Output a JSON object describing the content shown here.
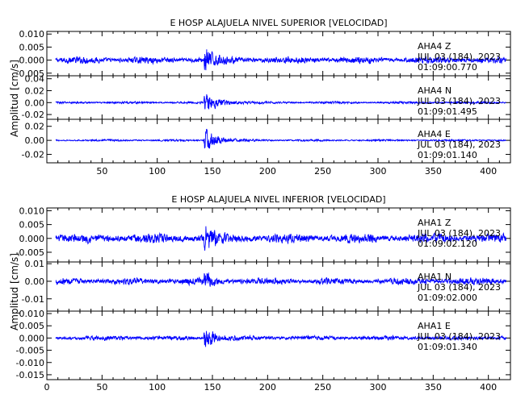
{
  "chart_data": [
    {
      "type": "line",
      "title": "E HOSP ALAJUELA NIVEL SUPERIOR [VELOCIDAD]",
      "ylabel": "Amplitud [cm/s]",
      "xlim": [
        0,
        420
      ],
      "xticks": [
        50,
        100,
        150,
        200,
        250,
        300,
        350,
        400
      ],
      "show_x_tick_labels": true,
      "channels": [
        {
          "station": "AHA4",
          "component": "Z",
          "date": "JUL 03 (184), 2023",
          "time": "01:09:00.770",
          "ylim": [
            -0.006,
            0.011
          ],
          "yticks": [
            0.01,
            0.005,
            0.0,
            -0.005
          ],
          "ytick_labels": [
            "0.010",
            "0.005",
            "0.000",
            "-0.005"
          ],
          "event_onset_x": 142,
          "noise_amplitude": 0.0017,
          "peak_amplitude": 0.008,
          "decay_seconds": 6
        },
        {
          "station": "AHA4",
          "component": "N",
          "date": "JUL 03 (184), 2023",
          "time": "01:09:01.495",
          "ylim": [
            -0.028,
            0.045
          ],
          "yticks": [
            0.04,
            0.02,
            0.0,
            -0.02
          ],
          "ytick_labels": [
            "0.04",
            "0.02",
            "0.00",
            "-0.02"
          ],
          "event_onset_x": 142,
          "noise_amplitude": 0.0025,
          "peak_amplitude": 0.022,
          "decay_seconds": 13
        },
        {
          "station": "AHA4",
          "component": "E",
          "date": "JUL 03 (184), 2023",
          "time": "01:09:01.140",
          "ylim": [
            -0.032,
            0.03
          ],
          "yticks": [
            0.02,
            0.0,
            -0.02
          ],
          "ytick_labels": [
            "0.02",
            "0.00",
            "-0.02"
          ],
          "event_onset_x": 142,
          "noise_amplitude": 0.0018,
          "peak_amplitude": 0.026,
          "decay_seconds": 10
        }
      ]
    },
    {
      "type": "line",
      "title": "E HOSP ALAJUELA NIVEL INFERIOR [VELOCIDAD]",
      "ylabel": "Amplitud [cm/s]",
      "xlim": [
        0,
        420
      ],
      "xticks": [
        0,
        50,
        100,
        150,
        200,
        250,
        300,
        350,
        400
      ],
      "show_x_tick_labels": true,
      "channels": [
        {
          "station": "AHA1",
          "component": "Z",
          "date": "JUL 03 (184), 2023",
          "time": "01:09:02.120",
          "ylim": [
            -0.0085,
            0.011
          ],
          "yticks": [
            0.01,
            0.005,
            0.0,
            -0.005
          ],
          "ytick_labels": [
            "0.010",
            "0.005",
            "0.000",
            "-0.005"
          ],
          "event_onset_x": 142,
          "noise_amplitude": 0.0022,
          "peak_amplitude": 0.008,
          "decay_seconds": 6
        },
        {
          "station": "AHA1",
          "component": "N",
          "date": "JUL 03 (184), 2023",
          "time": "01:09:02.000",
          "ylim": [
            -0.017,
            0.011
          ],
          "yticks": [
            0.01,
            0.0,
            -0.01
          ],
          "ytick_labels": [
            "0.01",
            "0.00",
            "-0.01"
          ],
          "event_onset_x": 142,
          "noise_amplitude": 0.0025,
          "peak_amplitude": 0.009,
          "decay_seconds": 6
        },
        {
          "station": "AHA1",
          "component": "E",
          "date": "JUL 03 (184), 2023",
          "time": "01:09:01.340",
          "ylim": [
            -0.017,
            0.011
          ],
          "yticks": [
            0.01,
            0.005,
            0.0,
            -0.005,
            -0.01,
            -0.015
          ],
          "ytick_labels": [
            "0.010",
            "0.005",
            "0.000",
            "-0.005",
            "-0.010",
            "-0.015"
          ],
          "event_onset_x": 142,
          "noise_amplitude": 0.0012,
          "peak_amplitude": 0.009,
          "decay_seconds": 7
        }
      ]
    }
  ],
  "colors": {
    "trace": "#0000ff",
    "axes": "#000000",
    "background": "#ffffff"
  }
}
